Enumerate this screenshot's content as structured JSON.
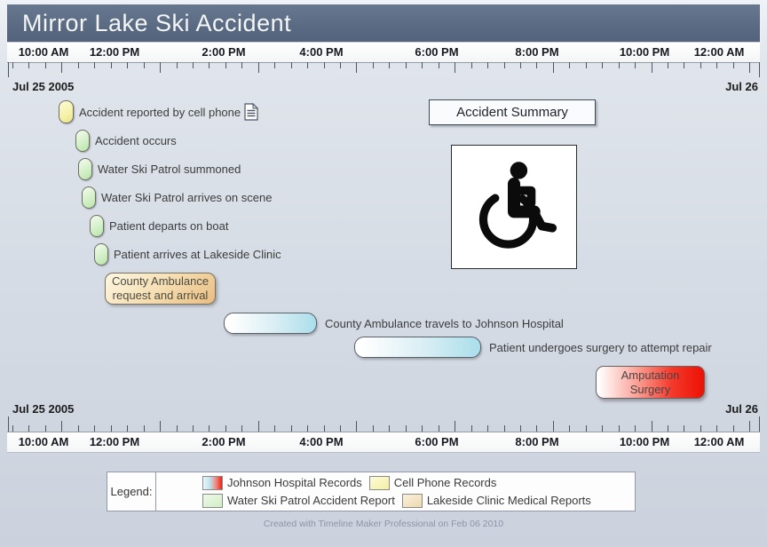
{
  "title": "Mirror Lake Ski Accident",
  "axis": {
    "times": [
      "10:00 AM",
      "12:00 PM",
      "2:00 PM",
      "4:00 PM",
      "6:00 PM",
      "8:00 PM",
      "10:00 PM",
      "12:00 AM"
    ],
    "date_start": "Jul 25 2005",
    "date_end": "Jul 26"
  },
  "events": {
    "points": [
      {
        "label": "Accident reported by cell phone",
        "marker_color": "#f4f0a6",
        "marker": "yellow-pill",
        "attachment": "document-icon"
      },
      {
        "label": "Accident occurs",
        "marker_color": "#cdeec2",
        "marker": "green-pill"
      },
      {
        "label": "Water Ski Patrol summoned",
        "marker_color": "#cdeec2",
        "marker": "green-pill"
      },
      {
        "label": "Water Ski Patrol arrives on scene",
        "marker_color": "#cdeec2",
        "marker": "green-pill"
      },
      {
        "label": "Patient departs on boat",
        "marker_color": "#cdeec2",
        "marker": "green-pill"
      },
      {
        "label": "Patient arrives at Lakeside Clinic",
        "marker_color": "#cdeec2",
        "marker": "green-pill"
      }
    ],
    "boxes": [
      {
        "line1": "County Ambulance",
        "line2": "request and arrival",
        "color": "#e9bd80"
      },
      {
        "line1": "Amputation",
        "line2": "Surgery",
        "color": "#ec1104"
      }
    ],
    "bars": [
      {
        "label": "County Ambulance travels to Johnson Hospital",
        "color": "#aadeeb"
      },
      {
        "label": "Patient undergoes surgery to attempt repair",
        "color": "#aadeeb"
      }
    ]
  },
  "summary_box": {
    "label": "Accident Summary"
  },
  "image_panel": {
    "name": "wheelchair-accessibility-symbol"
  },
  "legend": {
    "title": "Legend:",
    "items": [
      {
        "label": "Johnson Hospital Records",
        "swatch": "blue-to-red-gradient"
      },
      {
        "label": "Cell Phone Records",
        "swatch": "#f3efa4"
      },
      {
        "label": "Water Ski Patrol Accident Report",
        "swatch": "#cfeec4"
      },
      {
        "label": "Lakeside Clinic Medical Reports",
        "swatch": "#eed9ad"
      }
    ]
  },
  "footer": "Created with Timeline Maker Professional on Feb 06 2010",
  "colors": {
    "title_bar": "#5a6a83",
    "background_top": "#eff2f6",
    "background_bottom": "#cbd2dd",
    "bar_blue": "#aadeeb",
    "event_red": "#ec1104",
    "event_tan": "#e9bd80",
    "marker_green": "#cdeec2",
    "marker_yellow": "#f4f0a6"
  }
}
